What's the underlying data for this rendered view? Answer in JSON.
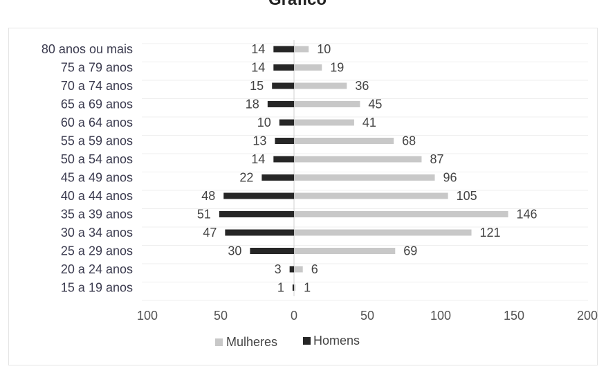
{
  "chart_data": {
    "type": "bar",
    "orientation": "horizontal",
    "title": "Gráfico",
    "categories": [
      "80 anos ou mais",
      "75 a 79 anos",
      "70 a 74 anos",
      "65 a 69 anos",
      "60 a 64 anos",
      "55 a 59 anos",
      "50 a 54 anos",
      "45 a 49 anos",
      "40 a 44 anos",
      "35 a 39 anos",
      "30 a 34 anos",
      "25 a 29 anos",
      "20 a 24 anos",
      "15 a 19 anos"
    ],
    "series": [
      {
        "name": "Mulheres",
        "color": "#c8c8c8",
        "values": [
          10,
          19,
          36,
          45,
          41,
          68,
          87,
          96,
          105,
          146,
          121,
          69,
          6,
          1
        ]
      },
      {
        "name": "Homens",
        "color": "#262626",
        "values": [
          14,
          14,
          15,
          18,
          10,
          13,
          14,
          22,
          48,
          51,
          47,
          30,
          3,
          1
        ]
      }
    ],
    "xticks": [
      "100",
      "50",
      "0",
      "50",
      "100",
      "150",
      "200"
    ],
    "xlim": [
      -100,
      200
    ],
    "legend_position": "bottom",
    "grid": true
  }
}
